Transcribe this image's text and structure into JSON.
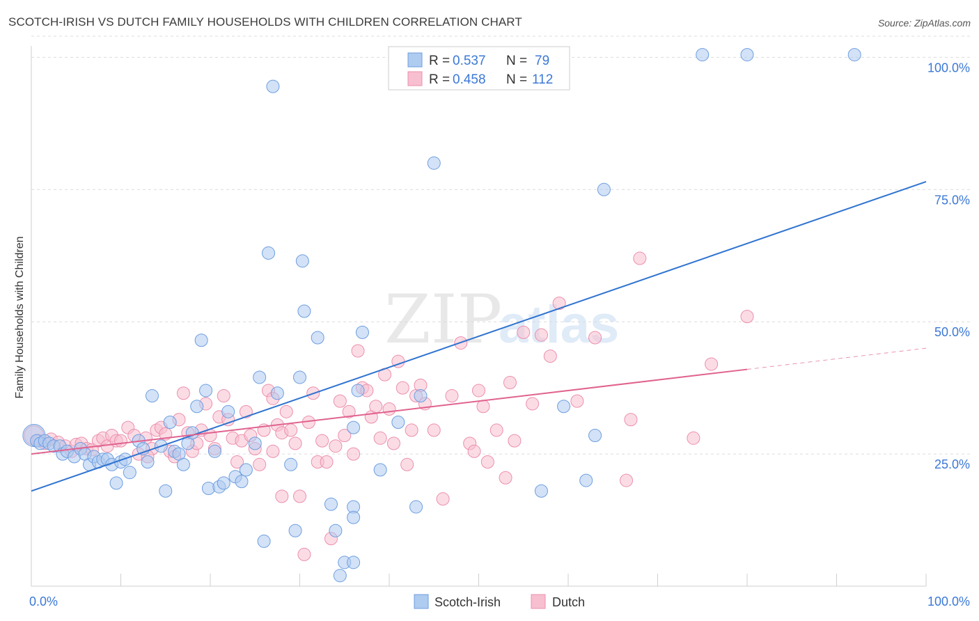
{
  "header": {
    "title": "SCOTCH-IRISH VS DUTCH FAMILY HOUSEHOLDS WITH CHILDREN CORRELATION CHART",
    "source": "Source: ZipAtlas.com"
  },
  "watermark": {
    "zip": "ZIP",
    "atlas": "atlas"
  },
  "stats": [
    {
      "r_label": "R =",
      "r_value": "0.537",
      "n_label": "N =",
      "n_value": "79"
    },
    {
      "r_label": "R =",
      "r_value": "0.458",
      "n_label": "N =",
      "n_value": "112"
    }
  ],
  "colors": {
    "scotch_fill": "#aecbf0",
    "scotch_stroke": "#6d9ee0",
    "scotch_line": "#2f73d0",
    "dutch_fill": "#f7bfd0",
    "dutch_stroke": "#ec8fac",
    "dutch_line": "#e0628e",
    "value_text": "#3b78d6",
    "grid": "#dcdcdc"
  },
  "chart_data": {
    "type": "scatter",
    "title": "SCOTCH-IRISH VS DUTCH FAMILY HOUSEHOLDS WITH CHILDREN CORRELATION CHART",
    "ylabel": "Family Households with Children",
    "xlabel": "",
    "xlim": [
      0,
      100
    ],
    "ylim": [
      0,
      104
    ],
    "x_tick_labels": [
      "0.0%",
      "100.0%"
    ],
    "y_tick_labels": [
      "25.0%",
      "50.0%",
      "75.0%",
      "100.0%"
    ],
    "y_ticks": [
      25,
      50,
      75,
      100
    ],
    "grid": "horizontal dashed",
    "legend": "bottom-center",
    "series": [
      {
        "name": "Scotch-Irish",
        "color": "#aecbf0",
        "trend": {
          "x": [
            0,
            100
          ],
          "y": [
            18.0,
            76.5
          ]
        },
        "points": [
          [
            0.3,
            28.5
          ],
          [
            0.6,
            27.5
          ],
          [
            1.0,
            27.0
          ],
          [
            1.5,
            27.5
          ],
          [
            2.0,
            27.0
          ],
          [
            2.5,
            26.5
          ],
          [
            3.2,
            26.5
          ],
          [
            3.5,
            25.0
          ],
          [
            4.0,
            25.5
          ],
          [
            4.8,
            24.5
          ],
          [
            5.5,
            26.0
          ],
          [
            6.0,
            25.0
          ],
          [
            6.5,
            23.0
          ],
          [
            7.0,
            24.5
          ],
          [
            7.5,
            23.5
          ],
          [
            8.0,
            24.0
          ],
          [
            8.5,
            24.0
          ],
          [
            9.0,
            23.0
          ],
          [
            9.5,
            19.5
          ],
          [
            10.0,
            23.5
          ],
          [
            10.5,
            24.0
          ],
          [
            11.0,
            21.5
          ],
          [
            12.0,
            27.5
          ],
          [
            12.5,
            26.0
          ],
          [
            13.0,
            23.5
          ],
          [
            13.5,
            36.0
          ],
          [
            14.5,
            26.5
          ],
          [
            15.0,
            18.0
          ],
          [
            15.5,
            31.0
          ],
          [
            16.0,
            25.5
          ],
          [
            16.5,
            25.0
          ],
          [
            17.0,
            23.0
          ],
          [
            17.5,
            27.0
          ],
          [
            18.0,
            29.0
          ],
          [
            18.5,
            34.0
          ],
          [
            19.0,
            46.5
          ],
          [
            19.5,
            37.0
          ],
          [
            19.8,
            18.5
          ],
          [
            20.5,
            25.5
          ],
          [
            21.0,
            18.8
          ],
          [
            21.5,
            19.5
          ],
          [
            22.0,
            33.0
          ],
          [
            22.8,
            20.7
          ],
          [
            23.5,
            19.8
          ],
          [
            24.0,
            22.0
          ],
          [
            25.0,
            27.0
          ],
          [
            25.5,
            39.5
          ],
          [
            26.0,
            8.5
          ],
          [
            26.5,
            63.0
          ],
          [
            27.0,
            94.5
          ],
          [
            27.5,
            36.5
          ],
          [
            29.0,
            23.0
          ],
          [
            29.5,
            10.5
          ],
          [
            30.0,
            39.5
          ],
          [
            30.3,
            61.5
          ],
          [
            30.5,
            52.0
          ],
          [
            32.0,
            47.0
          ],
          [
            36.0,
            15.0
          ],
          [
            36.5,
            37.0
          ],
          [
            37.0,
            48.0
          ],
          [
            36.0,
            30.0
          ],
          [
            33.5,
            15.5
          ],
          [
            34.0,
            10.5
          ],
          [
            35.0,
            4.5
          ],
          [
            36.0,
            4.5
          ],
          [
            34.5,
            2.0
          ],
          [
            36.0,
            13.0
          ],
          [
            39.0,
            22.0
          ],
          [
            41.0,
            31.0
          ],
          [
            43.0,
            15.0
          ],
          [
            43.5,
            36.0
          ],
          [
            45.0,
            80.0
          ],
          [
            57.0,
            18.0
          ],
          [
            59.5,
            34.0
          ],
          [
            62.0,
            20.0
          ],
          [
            63.0,
            28.5
          ],
          [
            64.0,
            75.0
          ],
          [
            75.0,
            100.5
          ],
          [
            80.0,
            100.5
          ],
          [
            92.0,
            100.5
          ]
        ]
      },
      {
        "name": "Dutch",
        "color": "#f7bfd0",
        "trend": {
          "x": [
            0,
            80
          ],
          "y": [
            25.0,
            41.0
          ]
        },
        "trend_dashed": {
          "x": [
            80,
            100
          ],
          "y": [
            41.0,
            45.0
          ]
        },
        "points": [
          [
            0.3,
            28.5
          ],
          [
            0.8,
            27.5
          ],
          [
            1.5,
            27.0
          ],
          [
            2.2,
            27.8
          ],
          [
            3.0,
            27.2
          ],
          [
            3.8,
            26.5
          ],
          [
            4.5,
            25.5
          ],
          [
            5.0,
            26.8
          ],
          [
            5.6,
            27.0
          ],
          [
            6.2,
            26.0
          ],
          [
            6.8,
            25.8
          ],
          [
            7.5,
            27.5
          ],
          [
            8.0,
            28.0
          ],
          [
            8.5,
            26.5
          ],
          [
            9.0,
            28.5
          ],
          [
            9.5,
            27.5
          ],
          [
            10.0,
            27.5
          ],
          [
            10.8,
            30.0
          ],
          [
            11.5,
            28.5
          ],
          [
            12.0,
            25.0
          ],
          [
            12.8,
            28.0
          ],
          [
            13.5,
            26.0
          ],
          [
            14.0,
            29.5
          ],
          [
            14.5,
            30.0
          ],
          [
            15.0,
            28.8
          ],
          [
            15.5,
            25.5
          ],
          [
            16.0,
            24.5
          ],
          [
            16.5,
            31.5
          ],
          [
            17.0,
            36.5
          ],
          [
            17.5,
            29.0
          ],
          [
            18.0,
            25.5
          ],
          [
            18.5,
            27.0
          ],
          [
            19.0,
            29.5
          ],
          [
            19.5,
            34.5
          ],
          [
            20.0,
            28.5
          ],
          [
            20.5,
            26.0
          ],
          [
            21.0,
            32.0
          ],
          [
            21.5,
            36.0
          ],
          [
            22.0,
            31.5
          ],
          [
            22.5,
            28.0
          ],
          [
            23.0,
            23.5
          ],
          [
            23.5,
            27.5
          ],
          [
            24.0,
            33.0
          ],
          [
            24.5,
            28.5
          ],
          [
            25.0,
            26.0
          ],
          [
            25.5,
            23.0
          ],
          [
            26.0,
            29.5
          ],
          [
            26.5,
            37.0
          ],
          [
            27.0,
            35.5
          ],
          [
            27.5,
            30.5
          ],
          [
            28.0,
            29.0
          ],
          [
            28.5,
            33.0
          ],
          [
            29.0,
            29.5
          ],
          [
            29.5,
            27.0
          ],
          [
            30.0,
            17.0
          ],
          [
            30.5,
            6.0
          ],
          [
            31.0,
            31.0
          ],
          [
            31.5,
            36.5
          ],
          [
            32.0,
            23.5
          ],
          [
            32.5,
            27.5
          ],
          [
            33.0,
            23.5
          ],
          [
            33.5,
            9.0
          ],
          [
            34.0,
            26.5
          ],
          [
            34.5,
            35.0
          ],
          [
            35.0,
            28.5
          ],
          [
            35.5,
            33.0
          ],
          [
            36.0,
            25.0
          ],
          [
            36.5,
            44.5
          ],
          [
            37.0,
            37.5
          ],
          [
            37.5,
            37.0
          ],
          [
            38.0,
            32.0
          ],
          [
            38.5,
            34.0
          ],
          [
            39.0,
            28.0
          ],
          [
            39.5,
            40.0
          ],
          [
            40.0,
            33.5
          ],
          [
            40.5,
            27.0
          ],
          [
            41.0,
            42.5
          ],
          [
            41.5,
            37.5
          ],
          [
            42.0,
            23.0
          ],
          [
            42.5,
            29.5
          ],
          [
            43.0,
            36.0
          ],
          [
            43.5,
            38.0
          ],
          [
            44.0,
            34.5
          ],
          [
            45.0,
            29.5
          ],
          [
            46.0,
            16.5
          ],
          [
            47.0,
            36.0
          ],
          [
            48.0,
            46.0
          ],
          [
            49.0,
            27.0
          ],
          [
            49.5,
            25.5
          ],
          [
            50.0,
            37.0
          ],
          [
            50.5,
            34.0
          ],
          [
            51.0,
            23.5
          ],
          [
            52.0,
            29.5
          ],
          [
            53.0,
            20.5
          ],
          [
            53.5,
            38.5
          ],
          [
            54.0,
            27.5
          ],
          [
            55.0,
            48.0
          ],
          [
            56.0,
            34.5
          ],
          [
            57.0,
            47.5
          ],
          [
            58.0,
            43.5
          ],
          [
            59.0,
            53.5
          ],
          [
            61.0,
            35.0
          ],
          [
            63.0,
            47.0
          ],
          [
            66.5,
            20.0
          ],
          [
            67.0,
            31.5
          ],
          [
            68.0,
            62.0
          ],
          [
            74.0,
            28.0
          ],
          [
            76.0,
            42.0
          ],
          [
            80.0,
            51.0
          ],
          [
            28.0,
            17.0
          ],
          [
            27.0,
            25.5
          ],
          [
            13.0,
            24.5
          ]
        ]
      }
    ]
  },
  "legend": {
    "items": [
      "Scotch-Irish",
      "Dutch"
    ]
  }
}
